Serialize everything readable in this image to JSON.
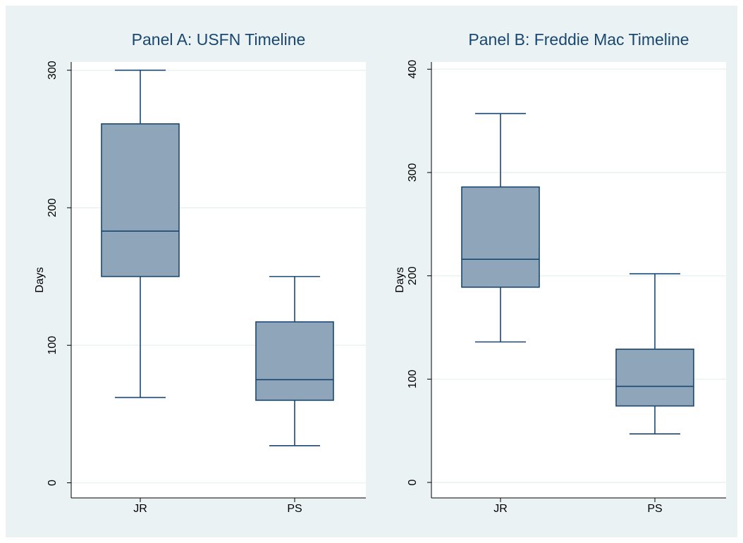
{
  "chart_data": [
    {
      "type": "box",
      "title": "Panel A: USFN Timeline",
      "ylabel": "Days",
      "categories": [
        "JR",
        "PS"
      ],
      "boxes": [
        {
          "min": 62,
          "q1": 150,
          "median": 183,
          "q3": 261,
          "max": 300
        },
        {
          "min": 27,
          "q1": 60,
          "median": 75,
          "q3": 117,
          "max": 150
        }
      ],
      "color": "#8ea5ba",
      "edge_color": "#1a476f",
      "ylim": [
        -11,
        306
      ],
      "yticks": [
        0,
        100,
        200,
        300
      ],
      "grid": true
    },
    {
      "type": "box",
      "title": "Panel B: Freddie Mac Timeline",
      "ylabel": "Days",
      "categories": [
        "JR",
        "PS"
      ],
      "boxes": [
        {
          "min": 136,
          "q1": 189,
          "median": 216,
          "q3": 286,
          "max": 357
        },
        {
          "min": 47,
          "q1": 74,
          "median": 93,
          "q3": 129,
          "max": 202
        }
      ],
      "color": "#8ea5ba",
      "edge_color": "#1a476f",
      "ylim": [
        -15,
        407
      ],
      "yticks": [
        0,
        100,
        200,
        300,
        400
      ],
      "grid": true
    }
  ]
}
